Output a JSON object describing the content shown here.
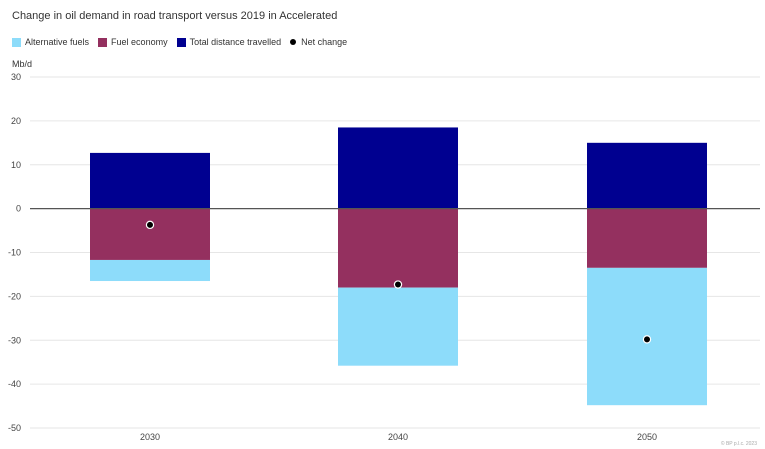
{
  "chart_data": {
    "type": "bar",
    "stacked": true,
    "title": "Change in oil demand in road transport versus 2019 in Accelerated",
    "ylabel": "Mb/d",
    "categories": [
      "2030",
      "2040",
      "2050"
    ],
    "yticks": [
      "30",
      "20",
      "10",
      "0",
      "-10",
      "-20",
      "-30",
      "-40",
      "-50"
    ],
    "ylim": [
      -50,
      30
    ],
    "grid": true,
    "legend_position": "top-left",
    "series": [
      {
        "name": "Alternative fuels",
        "color": "#8ddcfa",
        "values": [
          -4.8,
          -17.8,
          -31.3
        ]
      },
      {
        "name": "Fuel economy",
        "color": "#94305f",
        "values": [
          -11.7,
          -18.0,
          -13.5
        ]
      },
      {
        "name": "Total distance travelled",
        "color": "#000090",
        "values": [
          12.7,
          18.5,
          15.0
        ]
      }
    ],
    "net_change": {
      "name": "Net change",
      "values": [
        -3.7,
        -17.3,
        -29.8
      ]
    }
  },
  "watermark": "© BP p.l.c. 2023"
}
